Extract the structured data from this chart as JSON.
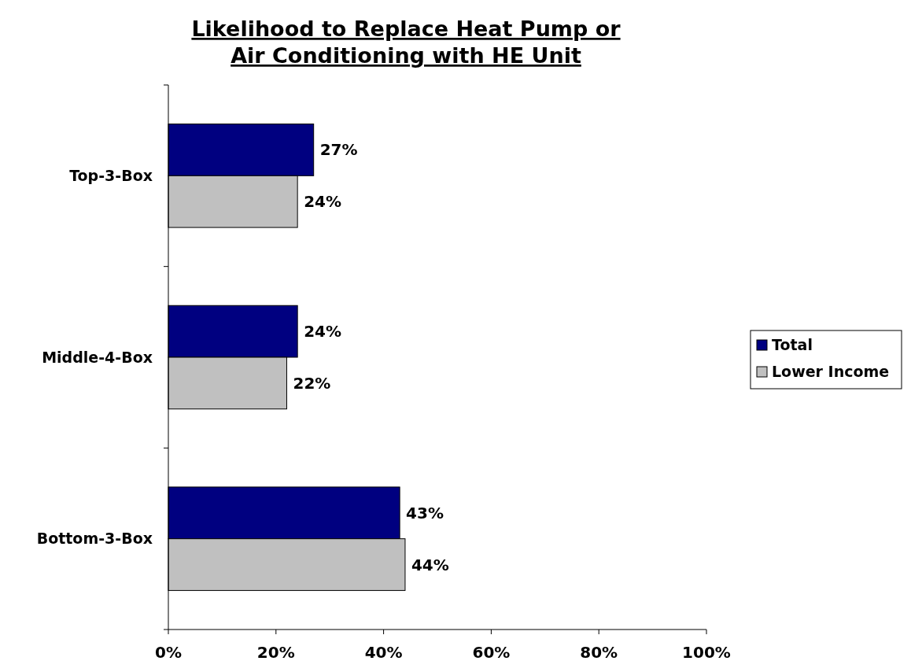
{
  "chart_data": {
    "type": "bar",
    "orientation": "horizontal",
    "title": "Likelihood to Replace Heat Pump or Air Conditioning with HE Unit",
    "categories": [
      "Top-3-Box",
      "Middle-4-Box",
      "Bottom-3-Box"
    ],
    "series": [
      {
        "name": "Total",
        "color": "#000080",
        "values": [
          27,
          24,
          43
        ],
        "value_labels": [
          "27%",
          "24%",
          "43%"
        ]
      },
      {
        "name": "Lower Income",
        "color": "#c0c0c0",
        "values": [
          24,
          22,
          44
        ],
        "value_labels": [
          "24%",
          "22%",
          "44%"
        ]
      }
    ],
    "xlim": [
      0,
      100
    ],
    "xticks": [
      {
        "value": 0,
        "label": "0%"
      },
      {
        "value": 20,
        "label": "20%"
      },
      {
        "value": 40,
        "label": "40%"
      },
      {
        "value": 60,
        "label": "60%"
      },
      {
        "value": 80,
        "label": "80%"
      },
      {
        "value": 100,
        "label": "100%"
      }
    ],
    "grid": false,
    "legend": "right"
  }
}
